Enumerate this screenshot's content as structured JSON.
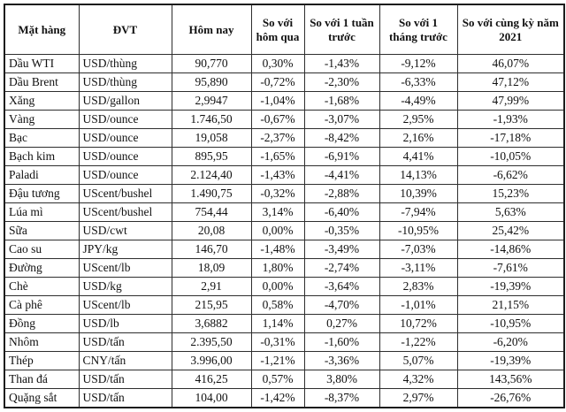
{
  "chart_data": {
    "type": "table",
    "columns": [
      "Mặt hàng",
      "ĐVT",
      "Hôm nay",
      "So với hôm qua",
      "So với 1 tuần trước",
      "So với 1 tháng trước",
      "So với cùng kỳ năm 2021"
    ],
    "rows": [
      [
        "Dầu WTI",
        "USD/thùng",
        "90,770",
        "0,30%",
        "-1,43%",
        "-9,12%",
        "46,07%"
      ],
      [
        "Dầu Brent",
        "USD/thùng",
        "95,890",
        "-0,72%",
        "-2,30%",
        "-6,33%",
        "47,12%"
      ],
      [
        "Xăng",
        "USD/gallon",
        "2,9947",
        "-1,04%",
        "-1,68%",
        "-4,49%",
        "47,99%"
      ],
      [
        "Vàng",
        "USD/ounce",
        "1.746,50",
        "-0,67%",
        "-3,07%",
        "2,95%",
        "-1,93%"
      ],
      [
        "Bạc",
        "USD/ounce",
        "19,058",
        "-2,37%",
        "-8,42%",
        "2,16%",
        "-17,18%"
      ],
      [
        "Bạch kim",
        "USD/ounce",
        "895,95",
        "-1,65%",
        "-6,91%",
        "4,41%",
        "-10,05%"
      ],
      [
        "Paladi",
        "USD/ounce",
        "2.124,40",
        "-1,43%",
        "-4,41%",
        "14,13%",
        "-6,62%"
      ],
      [
        "Đậu tương",
        "UScent/bushel",
        "1.490,75",
        "-0,32%",
        "-2,88%",
        "10,39%",
        "15,23%"
      ],
      [
        "Lúa mì",
        "UScent/bushel",
        "754,44",
        "3,14%",
        "-6,40%",
        "-7,94%",
        "5,63%"
      ],
      [
        "Sữa",
        "USD/cwt",
        "20,08",
        "0,00%",
        "-0,35%",
        "-10,95%",
        "25,42%"
      ],
      [
        "Cao su",
        "JPY/kg",
        "146,70",
        "-1,48%",
        "-3,49%",
        "-7,03%",
        "-14,86%"
      ],
      [
        "Đường",
        "UScent/lb",
        "18,09",
        "1,80%",
        "-2,74%",
        "-3,11%",
        "-7,61%"
      ],
      [
        "Chè",
        "USD/kg",
        "2,91",
        "0,00%",
        "-3,64%",
        "2,83%",
        "-19,39%"
      ],
      [
        "Cà phê",
        "UScent/lb",
        "215,95",
        "0,58%",
        "-4,70%",
        "-1,01%",
        "21,15%"
      ],
      [
        "Đồng",
        "USD/lb",
        "3,6882",
        "1,14%",
        "0,27%",
        "10,72%",
        "-10,95%"
      ],
      [
        "Nhôm",
        "USD/tấn",
        "2.395,50",
        "-0,31%",
        "-1,60%",
        "-1,22%",
        "-6,20%"
      ],
      [
        "Thép",
        "CNY/tấn",
        "3.996,00",
        "-1,21%",
        "-3,36%",
        "5,07%",
        "-19,39%"
      ],
      [
        "Than đá",
        "USD/tấn",
        "416,25",
        "0,57%",
        "3,80%",
        "4,32%",
        "143,56%"
      ],
      [
        "Quặng sắt",
        "USD/tấn",
        "104,00",
        "-1,42%",
        "-8,37%",
        "2,97%",
        "-26,76%"
      ]
    ]
  }
}
